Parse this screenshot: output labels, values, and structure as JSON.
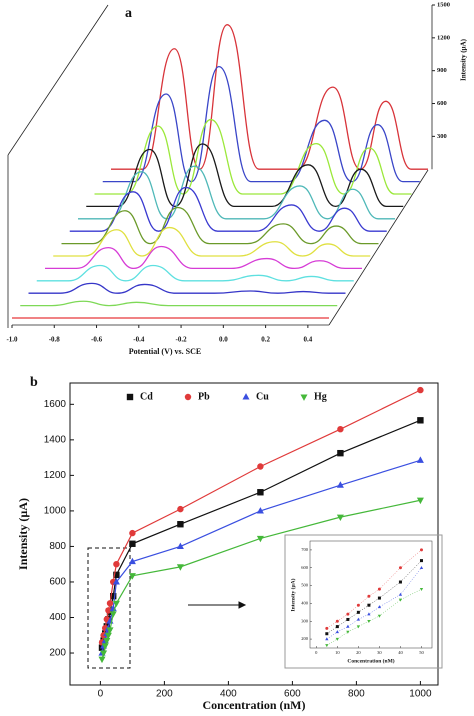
{
  "chart_data": [
    {
      "type": "waterfall",
      "label": "a",
      "x_label": "Potential (V) vs. SCE",
      "y_label": "Intensity (µA)",
      "x": [
        -1.0,
        -0.85,
        -0.7,
        -0.58,
        -0.45,
        -0.3,
        -0.12,
        0.05,
        0.18,
        0.3,
        0.42,
        0.5
      ],
      "xlim": [
        -1.0,
        0.5
      ],
      "xticks": [
        {
          "value": -1.0,
          "label": "-1.0"
        },
        -0.8,
        -0.6,
        -0.4,
        -0.2,
        {
          "value": 0,
          "label": "0.0"
        },
        0.2,
        0.4
      ],
      "ylim": [
        0,
        1500
      ],
      "yticks": [
        300,
        600,
        900,
        1200,
        1500
      ],
      "series": [
        {
          "color": "#e8383a",
          "values": [
            0,
            0,
            0,
            0,
            0,
            0,
            0,
            0,
            0,
            0,
            0,
            0
          ]
        },
        {
          "color": "#7ed957",
          "values": [
            0,
            0,
            40,
            0,
            30,
            0,
            0,
            0,
            0,
            0,
            0,
            0
          ]
        },
        {
          "color": "#3636c8",
          "values": [
            0,
            0,
            90,
            0,
            80,
            0,
            0,
            20,
            0,
            15,
            0,
            0
          ]
        },
        {
          "color": "#5ee0e0",
          "values": [
            0,
            0,
            140,
            0,
            140,
            0,
            0,
            50,
            0,
            40,
            0,
            0
          ]
        },
        {
          "color": "#d63cd6",
          "values": [
            0,
            0,
            190,
            0,
            200,
            0,
            0,
            90,
            0,
            70,
            0,
            0
          ]
        },
        {
          "color": "#e0e040",
          "values": [
            0,
            0,
            240,
            0,
            260,
            0,
            0,
            130,
            0,
            110,
            0,
            0
          ]
        },
        {
          "color": "#6b9a2a",
          "values": [
            0,
            0,
            300,
            0,
            330,
            0,
            0,
            180,
            0,
            160,
            0,
            0
          ]
        },
        {
          "color": "#3a3ad0",
          "values": [
            0,
            0,
            360,
            0,
            400,
            0,
            0,
            240,
            0,
            210,
            0,
            0
          ]
        },
        {
          "color": "#4fb8b8",
          "values": [
            0,
            0,
            430,
            0,
            480,
            0,
            0,
            300,
            0,
            270,
            0,
            0
          ]
        },
        {
          "color": "#1a1a1a",
          "values": [
            0,
            0,
            520,
            0,
            570,
            0,
            0,
            380,
            0,
            340,
            0,
            0
          ]
        },
        {
          "color": "#9be83a",
          "values": [
            0,
            0,
            620,
            0,
            680,
            0,
            0,
            460,
            0,
            420,
            0,
            0
          ]
        },
        {
          "color": "#3a46c8",
          "values": [
            0,
            0,
            800,
            0,
            1050,
            0,
            0,
            560,
            0,
            520,
            0,
            0
          ]
        },
        {
          "color": "#d8343a",
          "values": [
            0,
            0,
            1100,
            0,
            1320,
            0,
            0,
            750,
            0,
            620,
            0,
            0
          ]
        }
      ]
    },
    {
      "type": "scatter",
      "label": "b",
      "x_label": "Concentration (nM)",
      "y_label": "Intensity (µA)",
      "x": [
        5,
        10,
        15,
        20,
        25,
        30,
        40,
        50,
        100,
        250,
        500,
        750,
        1000
      ],
      "xlim": [
        -95,
        1055
      ],
      "xticks": [
        0,
        200,
        400,
        600,
        800,
        1000
      ],
      "ylim": [
        20,
        1720
      ],
      "yticks": [
        200,
        400,
        600,
        800,
        1000,
        1200,
        1400,
        1600
      ],
      "legend": "top",
      "series": [
        {
          "name": "Cd",
          "color": "#111111",
          "marker": "square",
          "values": [
            230,
            270,
            310,
            350,
            390,
            430,
            520,
            640,
            815,
            925,
            1105,
            1325,
            1510
          ]
        },
        {
          "name": "Pb",
          "color": "#e03a3a",
          "marker": "circle",
          "values": [
            260,
            300,
            340,
            390,
            440,
            480,
            600,
            700,
            875,
            1010,
            1250,
            1460,
            1680
          ]
        },
        {
          "name": "Cu",
          "color": "#3a4fe0",
          "marker": "triangle-up",
          "values": [
            200,
            240,
            270,
            310,
            340,
            380,
            450,
            600,
            715,
            800,
            1000,
            1145,
            1285
          ]
        },
        {
          "name": "Hg",
          "color": "#45b83a",
          "marker": "triangle-down",
          "values": [
            165,
            200,
            240,
            270,
            300,
            330,
            420,
            480,
            635,
            685,
            845,
            965,
            1060
          ]
        }
      ],
      "inset": {
        "x_label": "Concentration (nM)",
        "y_label": "Intensity (µA)",
        "xlim": [
          -3,
          55
        ],
        "xticks": [
          0,
          10,
          20,
          30,
          40,
          50
        ],
        "ylim": [
          150,
          750
        ],
        "yticks": [
          200,
          300,
          400,
          500,
          600,
          700
        ],
        "points": 8
      }
    }
  ]
}
